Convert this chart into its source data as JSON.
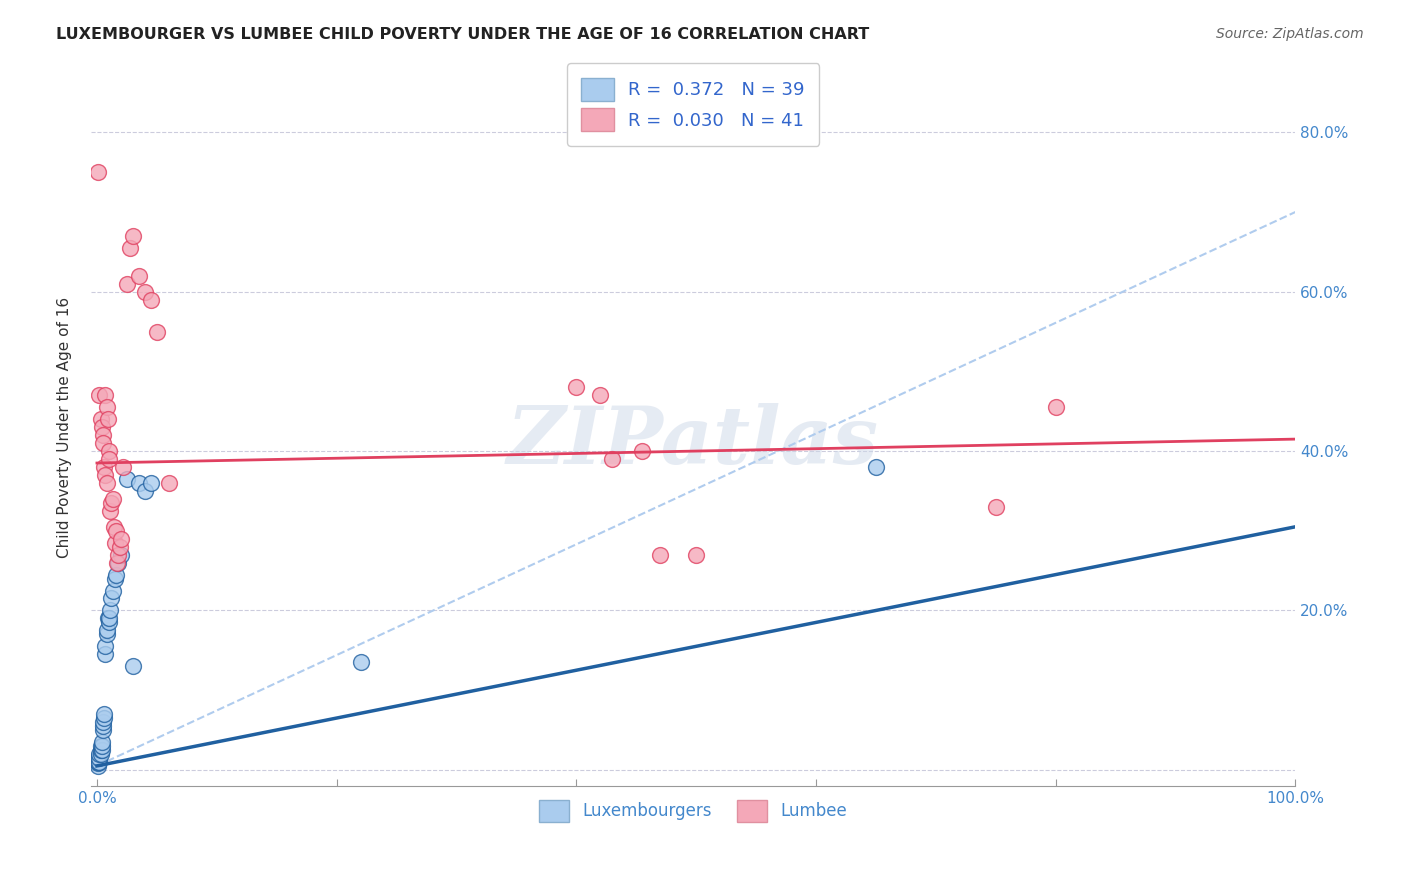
{
  "title": "LUXEMBOURGER VS LUMBEE CHILD POVERTY UNDER THE AGE OF 16 CORRELATION CHART",
  "source": "Source: ZipAtlas.com",
  "ylabel": "Child Poverty Under the Age of 16",
  "watermark": "ZIPatlas",
  "legend_luxembourger": "Luxembourgers",
  "legend_lumbee": "Lumbee",
  "R_lux": 0.372,
  "N_lux": 39,
  "R_lum": 0.03,
  "N_lum": 41,
  "xlim": [
    -0.005,
    1.0
  ],
  "ylim": [
    -0.02,
    0.88
  ],
  "xticks": [
    0.0,
    0.2,
    0.4,
    0.6,
    0.8,
    1.0
  ],
  "yticks": [
    0.0,
    0.2,
    0.4,
    0.6,
    0.8
  ],
  "ytick_labels": [
    "",
    "20.0%",
    "40.0%",
    "60.0%",
    "80.0%"
  ],
  "xtick_labels": [
    "0.0%",
    "",
    "",
    "",
    "",
    "100.0%"
  ],
  "right_ytick_labels": [
    "20.0%",
    "40.0%",
    "60.0%",
    "80.0%"
  ],
  "color_lux": "#aaccee",
  "color_lum": "#f4a8b8",
  "color_lux_line": "#2060a0",
  "color_lum_line": "#e04060",
  "color_dashed": "#b0ccee",
  "background": "#ffffff",
  "grid_color": "#ccccdd",
  "lux_x": [
    0.001,
    0.001,
    0.001,
    0.001,
    0.002,
    0.002,
    0.002,
    0.003,
    0.003,
    0.003,
    0.004,
    0.004,
    0.004,
    0.005,
    0.005,
    0.005,
    0.006,
    0.006,
    0.007,
    0.007,
    0.008,
    0.008,
    0.009,
    0.01,
    0.01,
    0.011,
    0.012,
    0.013,
    0.015,
    0.016,
    0.018,
    0.02,
    0.025,
    0.03,
    0.035,
    0.04,
    0.045,
    0.22,
    0.65
  ],
  "lux_y": [
    0.005,
    0.008,
    0.01,
    0.015,
    0.01,
    0.015,
    0.02,
    0.02,
    0.025,
    0.03,
    0.025,
    0.03,
    0.035,
    0.05,
    0.055,
    0.06,
    0.065,
    0.07,
    0.145,
    0.155,
    0.17,
    0.175,
    0.19,
    0.185,
    0.19,
    0.2,
    0.215,
    0.225,
    0.24,
    0.245,
    0.26,
    0.27,
    0.365,
    0.13,
    0.36,
    0.35,
    0.36,
    0.135,
    0.38
  ],
  "lum_x": [
    0.001,
    0.002,
    0.003,
    0.004,
    0.005,
    0.005,
    0.006,
    0.007,
    0.007,
    0.008,
    0.008,
    0.009,
    0.01,
    0.01,
    0.011,
    0.012,
    0.013,
    0.014,
    0.015,
    0.016,
    0.017,
    0.018,
    0.019,
    0.02,
    0.022,
    0.025,
    0.028,
    0.03,
    0.035,
    0.04,
    0.045,
    0.05,
    0.06,
    0.4,
    0.42,
    0.43,
    0.455,
    0.47,
    0.5,
    0.75,
    0.8
  ],
  "lum_y": [
    0.75,
    0.47,
    0.44,
    0.43,
    0.42,
    0.41,
    0.38,
    0.37,
    0.47,
    0.455,
    0.36,
    0.44,
    0.4,
    0.39,
    0.325,
    0.335,
    0.34,
    0.305,
    0.285,
    0.3,
    0.26,
    0.27,
    0.28,
    0.29,
    0.38,
    0.61,
    0.655,
    0.67,
    0.62,
    0.6,
    0.59,
    0.55,
    0.36,
    0.48,
    0.47,
    0.39,
    0.4,
    0.27,
    0.27,
    0.33,
    0.455
  ],
  "lux_line_x": [
    0.0,
    1.0
  ],
  "lux_line_y": [
    0.005,
    0.305
  ],
  "lum_line_x": [
    0.0,
    1.0
  ],
  "lum_line_y": [
    0.385,
    0.415
  ],
  "dash_line_x": [
    0.0,
    1.0
  ],
  "dash_line_y": [
    0.005,
    0.7
  ]
}
